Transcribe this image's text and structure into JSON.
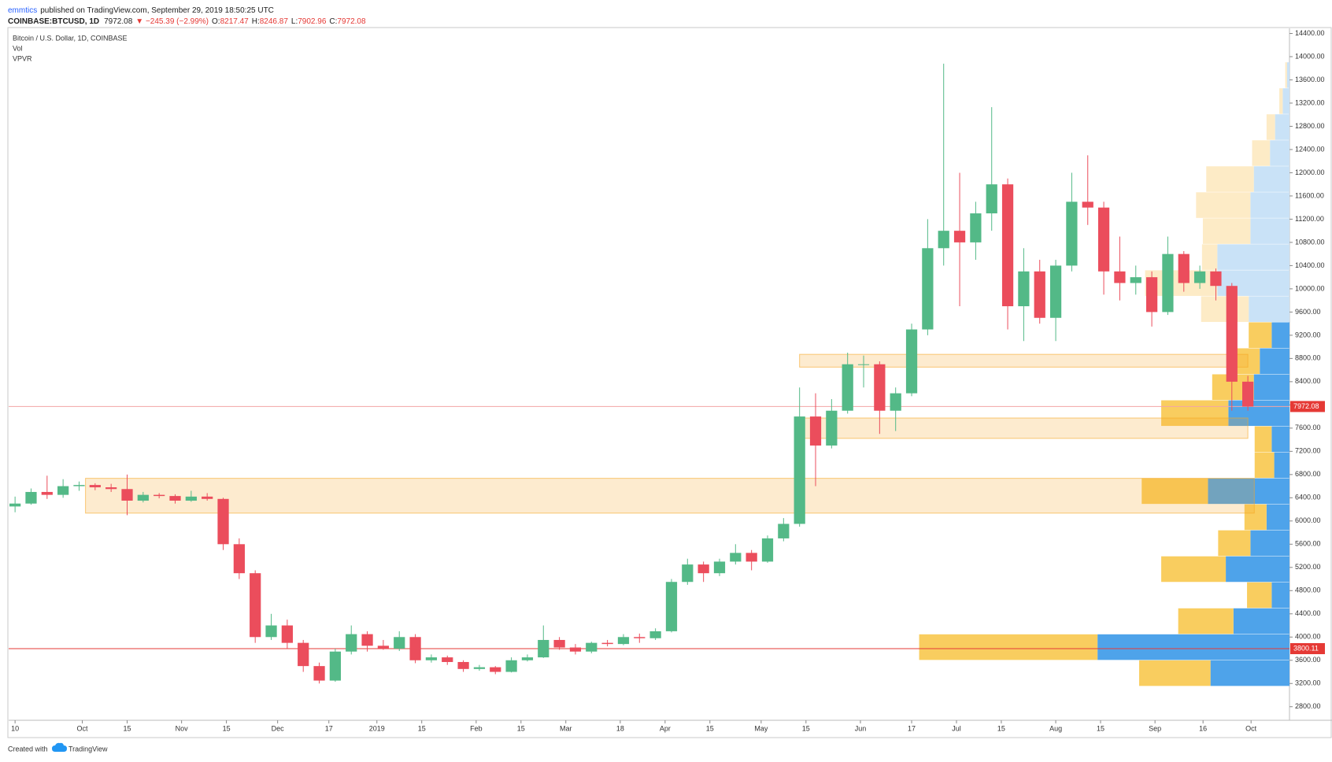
{
  "header": {
    "author": "emmtics",
    "published": "published on TradingView.com, September 29, 2019 18:50:25 UTC",
    "symbol": "COINBASE:BTCUSD, 1D",
    "last": "7972.08",
    "change": "▼ −245.39 (−2.99%)",
    "ohlc": [
      [
        "O:",
        "8217.47"
      ],
      [
        "H:",
        "8246.87"
      ],
      [
        "L:",
        "7902.96"
      ],
      [
        "C:",
        "7972.08"
      ]
    ]
  },
  "chart_data": {
    "type": "candlestick",
    "title": "Bitcoin / U.S. Dollar, 1D, COINBASE",
    "indicators": [
      "Vol",
      "VPVR"
    ],
    "up_color": "#53b987",
    "down_color": "#eb4d5c",
    "xlim": [
      -2,
      398
    ],
    "xticks": [
      {
        "value": 0,
        "label": "10"
      },
      {
        "value": 21,
        "label": "Oct"
      },
      {
        "value": 35,
        "label": "15"
      },
      {
        "value": 52,
        "label": "Nov"
      },
      {
        "value": 66,
        "label": "15"
      },
      {
        "value": 82,
        "label": "Dec"
      },
      {
        "value": 98,
        "label": "17"
      },
      {
        "value": 113,
        "label": "2019"
      },
      {
        "value": 127,
        "label": "15"
      },
      {
        "value": 144,
        "label": "Feb"
      },
      {
        "value": 158,
        "label": "15"
      },
      {
        "value": 172,
        "label": "Mar"
      },
      {
        "value": 189,
        "label": "18"
      },
      {
        "value": 203,
        "label": "Apr"
      },
      {
        "value": 217,
        "label": "15"
      },
      {
        "value": 233,
        "label": "May"
      },
      {
        "value": 247,
        "label": "15"
      },
      {
        "value": 264,
        "label": "Jun"
      },
      {
        "value": 280,
        "label": "17"
      },
      {
        "value": 294,
        "label": "Jul"
      },
      {
        "value": 308,
        "label": "15"
      },
      {
        "value": 325,
        "label": "Aug"
      },
      {
        "value": 339,
        "label": "15"
      },
      {
        "value": 356,
        "label": "Sep"
      },
      {
        "value": 371,
        "label": "16"
      },
      {
        "value": 386,
        "label": "Oct"
      }
    ],
    "ylim": [
      2566,
      14488
    ],
    "yticks": [
      {
        "value": 2800,
        "label": "2800.00"
      },
      {
        "value": 3200,
        "label": "3200.00"
      },
      {
        "value": 3600,
        "label": "3600.00"
      },
      {
        "value": 4000,
        "label": "4000.00"
      },
      {
        "value": 4400,
        "label": "4400.00"
      },
      {
        "value": 4800,
        "label": "4800.00"
      },
      {
        "value": 5200,
        "label": "5200.00"
      },
      {
        "value": 5600,
        "label": "5600.00"
      },
      {
        "value": 6000,
        "label": "6000.00"
      },
      {
        "value": 6400,
        "label": "6400.00"
      },
      {
        "value": 6800,
        "label": "6800.00"
      },
      {
        "value": 7200,
        "label": "7200.00"
      },
      {
        "value": 7600,
        "label": "7600.00"
      },
      {
        "value": 8000,
        "label": "8000.00"
      },
      {
        "value": 8400,
        "label": "8400.00"
      },
      {
        "value": 8800,
        "label": "8800.00"
      },
      {
        "value": 9200,
        "label": "9200.00"
      },
      {
        "value": 9600,
        "label": "9600.00"
      },
      {
        "value": 10000,
        "label": "10000.00"
      },
      {
        "value": 10400,
        "label": "10400.00"
      },
      {
        "value": 10800,
        "label": "10800.00"
      },
      {
        "value": 11200,
        "label": "11200.00"
      },
      {
        "value": 11600,
        "label": "11600.00"
      },
      {
        "value": 12000,
        "label": "12000.00"
      },
      {
        "value": 12400,
        "label": "12400.00"
      },
      {
        "value": 12800,
        "label": "12800.00"
      },
      {
        "value": 13200,
        "label": "13200.00"
      },
      {
        "value": 13600,
        "label": "13600.00"
      },
      {
        "value": 14000,
        "label": "14000.00"
      },
      {
        "value": 14400,
        "label": "14400.00"
      }
    ],
    "x": [
      0,
      5,
      10,
      15,
      20,
      25,
      30,
      35,
      40,
      45,
      50,
      55,
      60,
      65,
      70,
      75,
      80,
      85,
      90,
      95,
      100,
      105,
      110,
      115,
      120,
      125,
      130,
      135,
      140,
      145,
      150,
      155,
      160,
      165,
      170,
      175,
      180,
      185,
      190,
      195,
      200,
      205,
      210,
      215,
      220,
      225,
      230,
      235,
      240,
      245,
      250,
      255,
      260,
      265,
      270,
      275,
      280,
      285,
      290,
      295,
      300,
      305,
      310,
      315,
      320,
      325,
      330,
      335,
      340,
      345,
      350,
      355,
      360,
      365,
      370,
      375,
      380,
      385
    ],
    "open": [
      6250,
      6300,
      6500,
      6450,
      6600,
      6620,
      6580,
      6550,
      6350,
      6450,
      6430,
      6350,
      6420,
      6380,
      5600,
      5100,
      4000,
      4200,
      3900,
      3500,
      3250,
      3750,
      4050,
      3850,
      3800,
      4000,
      3600,
      3650,
      3570,
      3450,
      3480,
      3400,
      3600,
      3650,
      3950,
      3820,
      3750,
      3900,
      3880,
      4000,
      3980,
      4100,
      4950,
      5250,
      5100,
      5300,
      5450,
      5300,
      5700,
      5950,
      7800,
      7300,
      7900,
      8700,
      8700,
      7900,
      8200,
      9300,
      10700,
      11000,
      10800,
      11300,
      11800,
      9700,
      10300,
      9500,
      10400,
      11500,
      11400,
      10300,
      10100,
      10200,
      9600,
      10600,
      10100,
      10300,
      10050,
      8400
    ],
    "high": [
      6420,
      6560,
      6780,
      6720,
      6680,
      6650,
      6640,
      6800,
      6500,
      6480,
      6460,
      6520,
      6480,
      6400,
      5700,
      5150,
      4400,
      4300,
      3950,
      3560,
      3800,
      4200,
      4100,
      3950,
      4100,
      4050,
      3700,
      3680,
      3600,
      3520,
      3500,
      3650,
      3700,
      4200,
      4000,
      3880,
      3920,
      3950,
      4050,
      4060,
      4150,
      5000,
      5350,
      5300,
      5350,
      5600,
      5500,
      5750,
      6050,
      8300,
      8200,
      8100,
      8900,
      8850,
      8750,
      8300,
      9400,
      11200,
      13880,
      12000,
      11500,
      13130,
      11900,
      10700,
      10500,
      10500,
      12000,
      12300,
      11500,
      10900,
      10400,
      10300,
      10900,
      10650,
      10400,
      10350,
      10100,
      8500
    ],
    "low": [
      6150,
      6280,
      6380,
      6400,
      6520,
      6530,
      6500,
      6100,
      6320,
      6390,
      6300,
      6330,
      6350,
      5500,
      5000,
      3900,
      3950,
      3800,
      3400,
      3200,
      3230,
      3700,
      3750,
      3780,
      3760,
      3550,
      3560,
      3520,
      3400,
      3420,
      3360,
      3390,
      3580,
      3640,
      3780,
      3700,
      3720,
      3840,
      3860,
      3900,
      3950,
      4080,
      4900,
      4950,
      5050,
      5250,
      5150,
      5280,
      5650,
      5900,
      6600,
      7250,
      7850,
      8300,
      7500,
      7550,
      8150,
      9200,
      10400,
      9700,
      10500,
      11000,
      9300,
      9100,
      9400,
      9100,
      10300,
      11100,
      9900,
      9800,
      9900,
      9350,
      9550,
      9950,
      10000,
      9800,
      7900,
      7900
    ],
    "close": [
      6300,
      6500,
      6450,
      6600,
      6620,
      6580,
      6550,
      6350,
      6450,
      6430,
      6350,
      6420,
      6380,
      5600,
      5100,
      4000,
      4200,
      3900,
      3500,
      3250,
      3750,
      4050,
      3850,
      3800,
      4000,
      3600,
      3650,
      3570,
      3450,
      3480,
      3400,
      3600,
      3650,
      3950,
      3820,
      3750,
      3900,
      3880,
      4000,
      3980,
      4100,
      4950,
      5250,
      5100,
      5300,
      5450,
      5300,
      5700,
      5950,
      7800,
      7300,
      7900,
      8700,
      8700,
      7900,
      8200,
      9300,
      10700,
      11000,
      10800,
      11300,
      11800,
      9700,
      10300,
      9500,
      10400,
      11500,
      11400,
      10300,
      10100,
      10200,
      9600,
      10600,
      10100,
      10300,
      10050,
      8400,
      7972.08
    ],
    "price_lines": [
      {
        "value": 7972.08,
        "color": "#f3a5a5",
        "label_color": "#e53935"
      },
      {
        "value": 3800.11,
        "color": "#e53935",
        "label_color": "#e53935"
      }
    ],
    "zones": [
      {
        "xrange": [
          245,
          385
        ],
        "yrange": [
          8651,
          8871
        ]
      },
      {
        "xrange": [
          245.6,
          385
        ],
        "yrange": [
          7423,
          7774
        ]
      },
      {
        "xrange": [
          22,
          387
        ],
        "yrange": [
          6135,
          6735
        ]
      }
    ],
    "zone_color": "#f5a623",
    "volume_profile": {
      "bin_edges": [
        3151,
        3599,
        4047,
        4495,
        4943,
        5391,
        5839,
        6287,
        6735,
        7183,
        7631,
        8079,
        8527,
        8975,
        9423,
        9871,
        10319,
        10767,
        11215,
        11663,
        12111,
        12559,
        13007,
        13455,
        13903
      ],
      "up": [
        93,
        226,
        66,
        21,
        75,
        46,
        27,
        96,
        18,
        21,
        72,
        42,
        35,
        21,
        48,
        85,
        85,
        46,
        46,
        42,
        23,
        17,
        8,
        3
      ],
      "down": [
        84,
        210,
        65,
        29,
        76,
        38,
        26,
        78,
        23,
        20,
        79,
        49,
        30,
        27,
        56,
        85,
        18,
        56,
        64,
        56,
        21,
        10,
        4,
        2
      ],
      "value_area": [
        3151,
        9423
      ],
      "up_color": "#4ea3ea",
      "down_color": "#f9cd5f",
      "up_color_outside": "#c9e2f7",
      "down_color_outside": "#fdebc6"
    }
  },
  "footer": {
    "text": "Created with",
    "brand": "TradingView"
  }
}
